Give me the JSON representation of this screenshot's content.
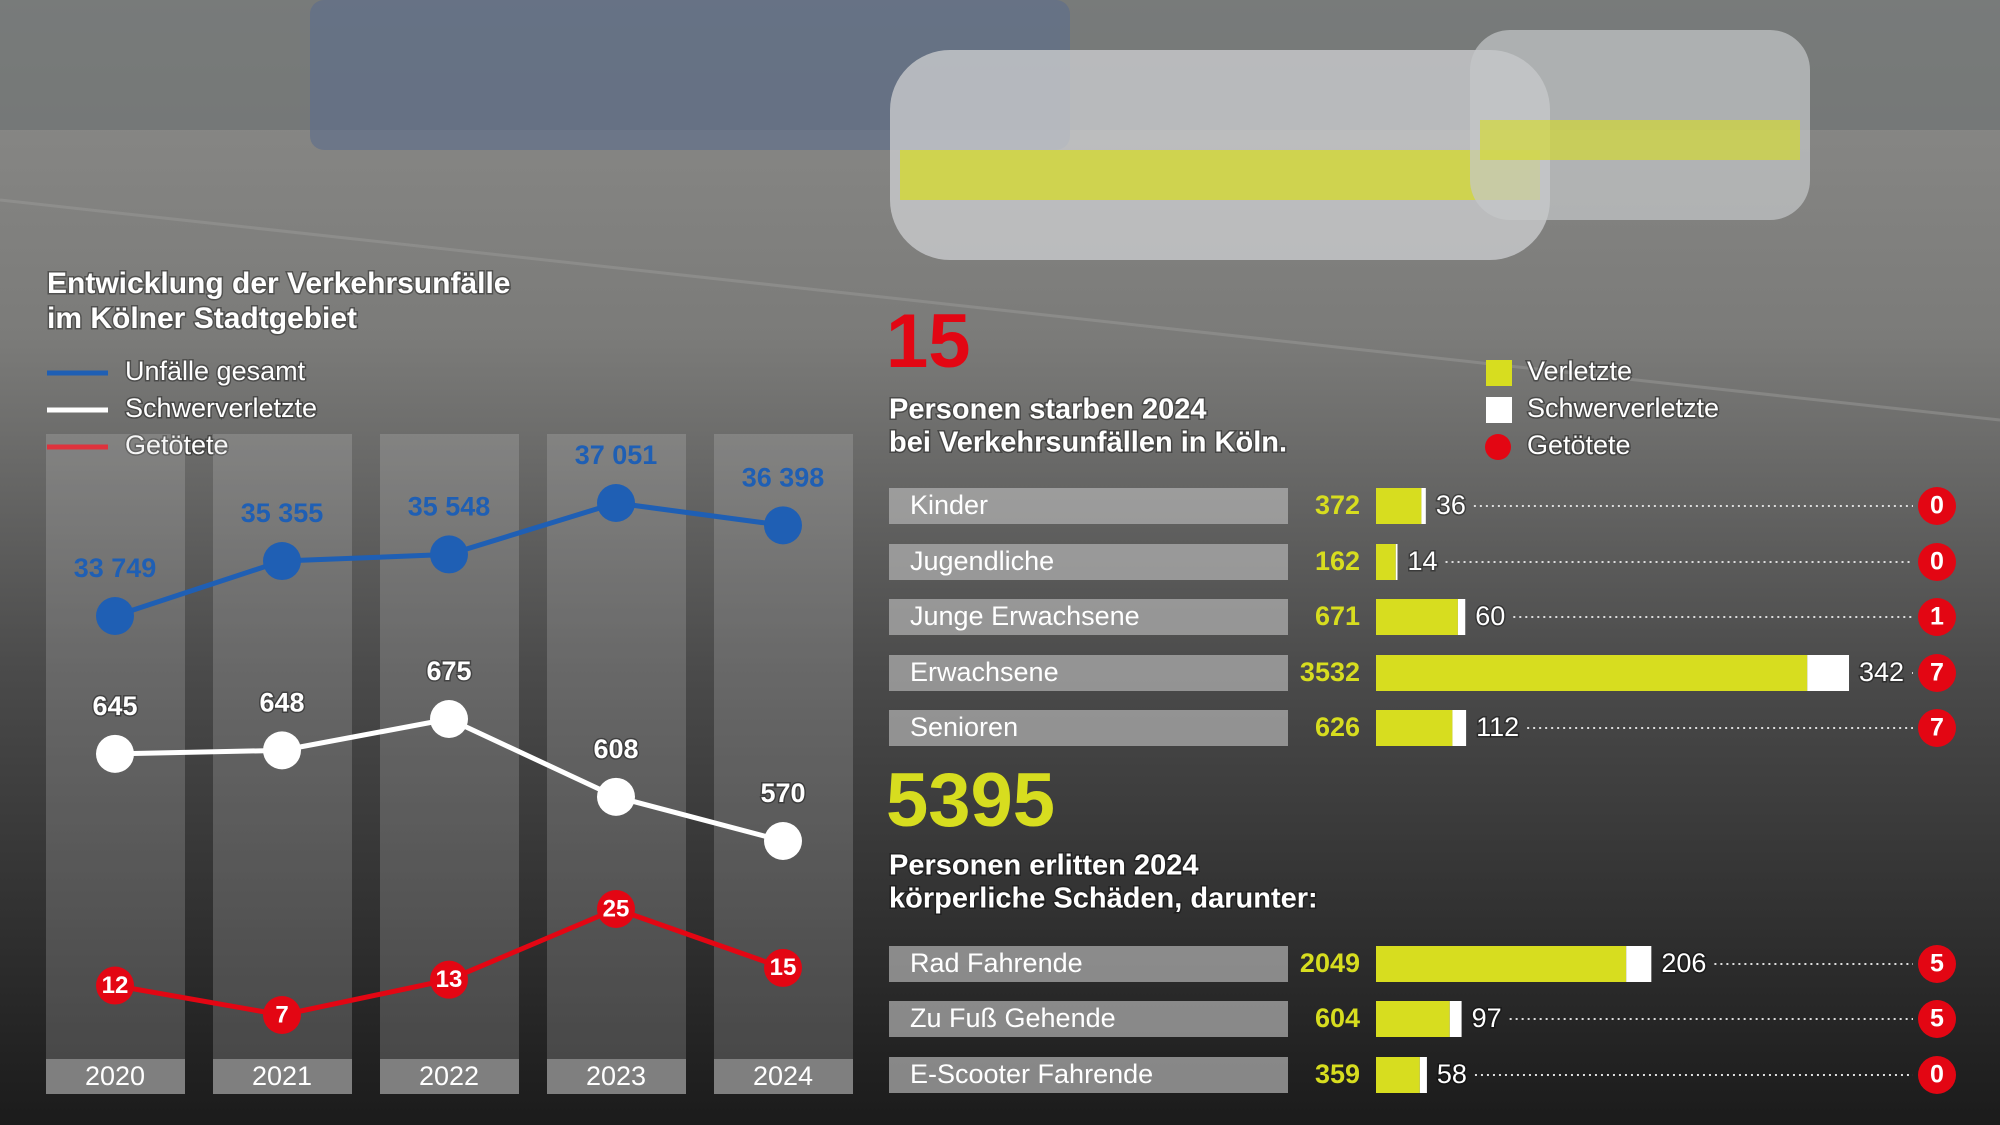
{
  "chart_data": [
    {
      "type": "line",
      "title": [
        "Entwicklung der Verkehrsunfälle",
        "im Kölner Stadtgebiet"
      ],
      "categories": [
        "2020",
        "2021",
        "2022",
        "2023",
        "2024"
      ],
      "series": [
        {
          "name": "Unfälle gesamt",
          "color": "#1f5fb4",
          "values": [
            33749,
            35355,
            35548,
            37051,
            36398
          ],
          "value_labels": [
            "33 749",
            "35 355",
            "35 548",
            "37 051",
            "36 398"
          ]
        },
        {
          "name": "Schwerverletzte",
          "color": "#ffffff",
          "values": [
            645,
            648,
            675,
            608,
            570
          ]
        },
        {
          "name": "Getötete",
          "color": "#e30613",
          "values": [
            12,
            7,
            13,
            25,
            15
          ]
        }
      ]
    },
    {
      "type": "bar",
      "highlight": 15,
      "highlight_color": "#e30613",
      "subtitle": [
        "Personen starben 2024",
        "bei Verkehrsunfällen in Köln."
      ],
      "categories": [
        "Kinder",
        "Jugendliche",
        "Junge Erwachsene",
        "Erwachsene",
        "Senioren"
      ],
      "series": [
        {
          "name": "Verletzte",
          "color": "#d7dd1f",
          "values": [
            372,
            162,
            671,
            3532,
            626
          ]
        },
        {
          "name": "Schwerverletzte",
          "color": "#ffffff",
          "values": [
            36,
            14,
            60,
            342,
            112
          ]
        },
        {
          "name": "Getötete",
          "color": "#e30613",
          "values": [
            0,
            0,
            1,
            7,
            7
          ]
        }
      ]
    },
    {
      "type": "bar",
      "highlight": 5395,
      "highlight_color": "#d7dd1f",
      "subtitle": [
        "Personen erlitten 2024",
        "körperliche Schäden, darunter:"
      ],
      "categories": [
        "Rad Fahrende",
        "Zu Fuß Gehende",
        "E-Scooter Fahrende"
      ],
      "series": [
        {
          "color": "#d7dd1f",
          "values": [
            2049,
            604,
            359
          ]
        },
        {
          "color": "#ffffff",
          "values": [
            206,
            97,
            58
          ]
        },
        {
          "color": "#e30613",
          "values": [
            5,
            5,
            0
          ]
        }
      ]
    }
  ]
}
